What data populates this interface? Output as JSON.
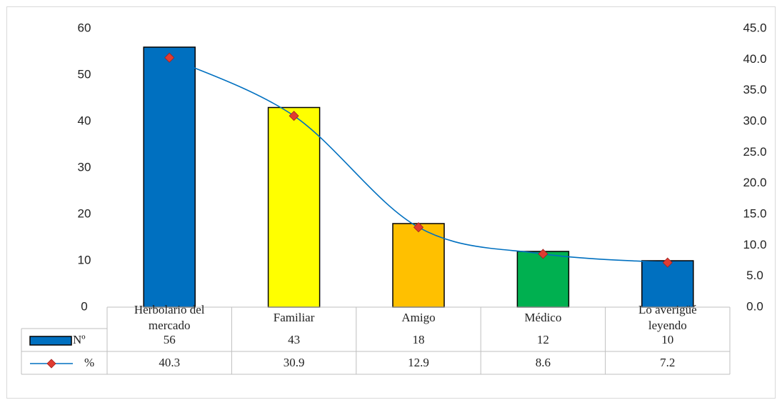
{
  "chart_data": {
    "type": "bar",
    "title": "",
    "categories": [
      [
        "Herbolario del",
        "mercado"
      ],
      [
        "Familiar"
      ],
      [
        "Amigo"
      ],
      [
        "Médico"
      ],
      [
        "Lo averigüé",
        "leyendo"
      ]
    ],
    "series": [
      {
        "name": "Nº",
        "kind": "bar",
        "axis": "left",
        "values": [
          56,
          43,
          18,
          12,
          10
        ],
        "display_values": [
          "56",
          "43",
          "18",
          "12",
          "10"
        ],
        "colors": [
          "#0070c0",
          "#ffff00",
          "#ffc000",
          "#00b050",
          "#0070c0"
        ]
      },
      {
        "name": "%",
        "kind": "line",
        "axis": "right",
        "values": [
          40.3,
          30.9,
          12.9,
          8.6,
          7.2
        ],
        "display_values": [
          "40.3",
          "30.9",
          "12.9",
          "8.6",
          "7.2"
        ],
        "line_color": "#0070c0",
        "marker_color": "#e03c31",
        "marker": "diamond",
        "smooth": true
      }
    ],
    "y_left": {
      "ylim": [
        0,
        60
      ],
      "ticks": [
        "0",
        "10",
        "20",
        "30",
        "40",
        "50",
        "60"
      ]
    },
    "y_right": {
      "ylim": [
        0,
        45
      ],
      "ticks": [
        "0.0",
        "5.0",
        "10.0",
        "15.0",
        "20.0",
        "25.0",
        "30.0",
        "35.0",
        "40.0",
        "45.0"
      ]
    },
    "data_table": true,
    "grid": false
  }
}
